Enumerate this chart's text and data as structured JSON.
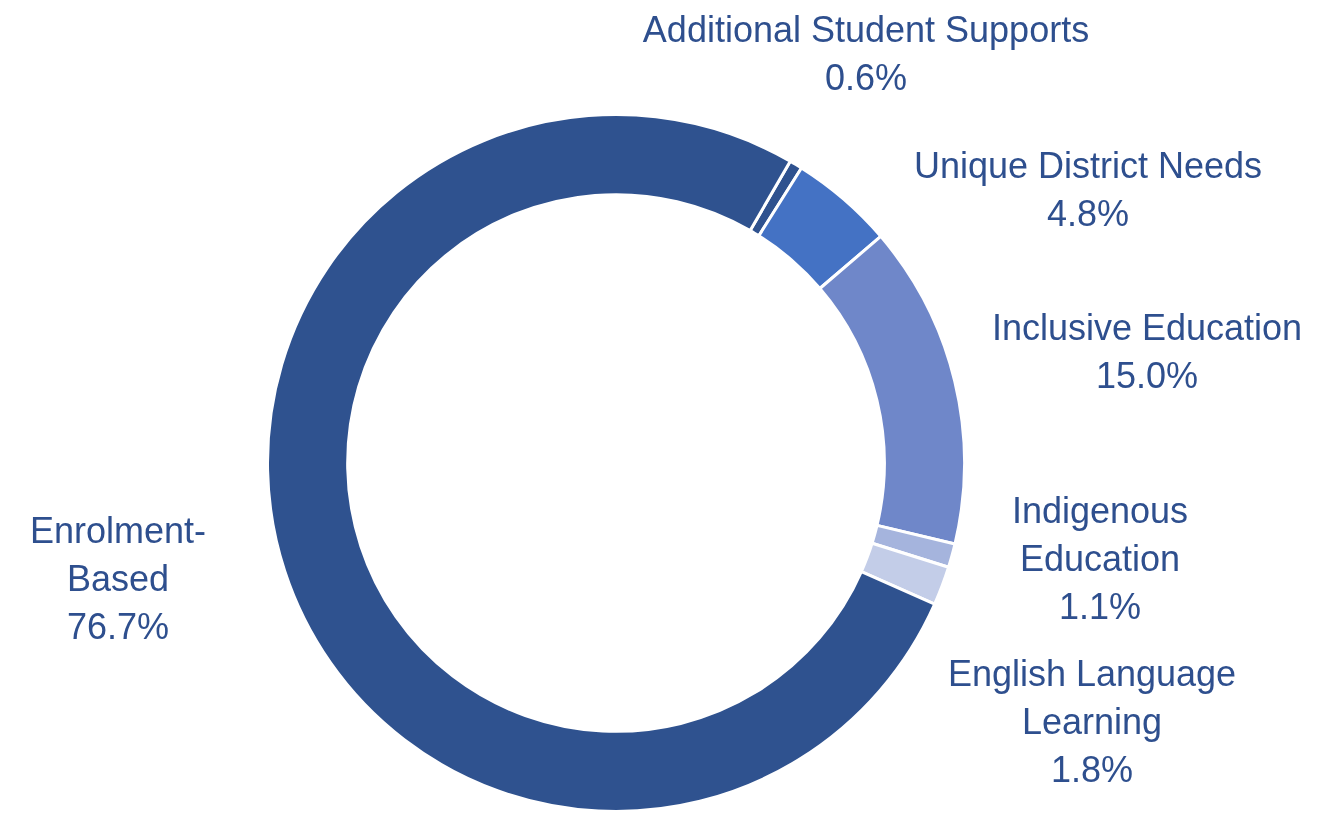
{
  "chart_data": {
    "type": "donut",
    "categories": [
      "Additional Student Supports",
      "Unique District Needs",
      "Inclusive Education",
      "Indigenous Education",
      "English Language Learning",
      "Enrolment-Based"
    ],
    "values": [
      0.6,
      4.8,
      15.0,
      1.1,
      1.8,
      76.7
    ],
    "colors": [
      "#2f528f",
      "#4472c4",
      "#6f87c9",
      "#a5b4dd",
      "#c3cde8",
      "#2f528f"
    ],
    "value_labels": [
      "0.6%",
      "4.8%",
      "15.0%",
      "1.1%",
      "1.8%",
      "76.7%"
    ],
    "legend": false
  }
}
